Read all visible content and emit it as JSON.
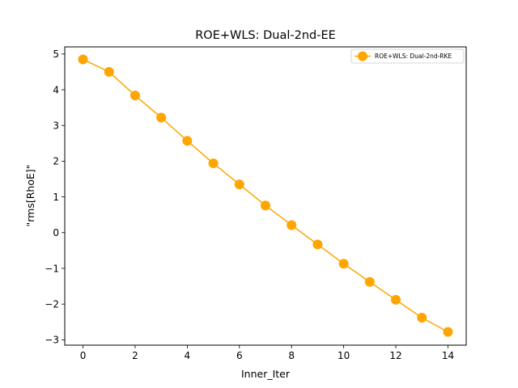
{
  "chart_data": {
    "type": "line",
    "title": "ROE+WLS: Dual-2nd-EE",
    "xlabel": "Inner_Iter",
    "ylabel": "\"rms[RhoE]\"",
    "xlim": [
      -0.7,
      14.7
    ],
    "ylim": [
      -3.15,
      5.2
    ],
    "xticks": [
      0,
      2,
      4,
      6,
      8,
      10,
      12,
      14
    ],
    "yticks": [
      -3,
      -2,
      -1,
      0,
      1,
      2,
      3,
      4,
      5
    ],
    "ytick_labels": [
      "−3",
      "−2",
      "−1",
      "0",
      "1",
      "2",
      "3",
      "4",
      "5"
    ],
    "grid": false,
    "legend_position": "top-right",
    "series": [
      {
        "name": "ROE+WLS: Dual-2nd-RKE",
        "color": "#FFA500",
        "marker": "circle",
        "x": [
          0,
          1,
          2,
          3,
          4,
          5,
          6,
          7,
          8,
          9,
          10,
          11,
          12,
          13,
          14
        ],
        "y": [
          4.85,
          4.5,
          3.84,
          3.22,
          2.57,
          1.94,
          1.35,
          0.76,
          0.21,
          -0.33,
          -0.87,
          -1.38,
          -1.88,
          -2.38,
          -2.78
        ]
      }
    ]
  }
}
